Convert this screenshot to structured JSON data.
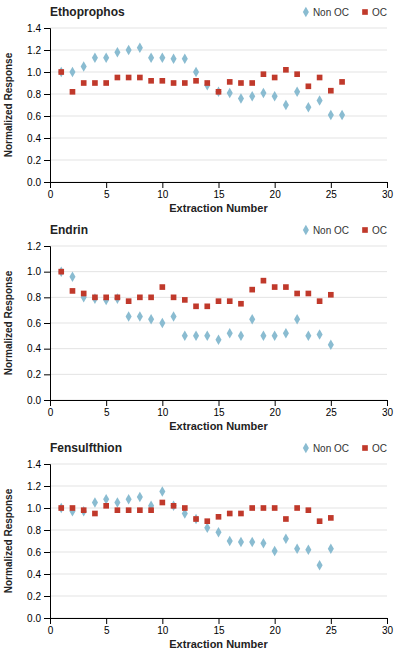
{
  "chart_data": [
    {
      "type": "scatter",
      "title": "Ethoprophos",
      "xlabel": "Extraction Number",
      "ylabel": "Normalized Response",
      "xlim": [
        0,
        30
      ],
      "xticks": [
        0,
        5,
        10,
        15,
        20,
        25,
        30
      ],
      "ylim": [
        0,
        1.4
      ],
      "yticks": [
        {
          "value": 0,
          "label": "0.0"
        },
        0.2,
        0.4,
        0.6,
        0.8,
        {
          "value": 1.0,
          "label": "1.0"
        },
        1.2,
        1.4
      ],
      "grid": "y",
      "legend": "upper right",
      "series": [
        {
          "name": "Non OC",
          "color": "#8abcd1",
          "marker": "diamond",
          "x": [
            1,
            2,
            3,
            4,
            5,
            6,
            7,
            8,
            9,
            10,
            11,
            12,
            13,
            14,
            15,
            16,
            17,
            18,
            19,
            20,
            21,
            22,
            23,
            24,
            25,
            26
          ],
          "values": [
            1.0,
            1.0,
            1.05,
            1.13,
            1.13,
            1.18,
            1.2,
            1.22,
            1.13,
            1.13,
            1.12,
            1.12,
            1.0,
            0.88,
            0.82,
            0.81,
            0.76,
            0.78,
            0.81,
            0.78,
            0.7,
            0.82,
            0.68,
            0.74,
            0.61,
            0.61
          ]
        },
        {
          "name": "OC",
          "color": "#c0392b",
          "marker": "square",
          "x": [
            1,
            2,
            3,
            4,
            5,
            6,
            7,
            8,
            9,
            10,
            11,
            12,
            13,
            14,
            15,
            16,
            17,
            18,
            19,
            20,
            21,
            22,
            23,
            24,
            25,
            26
          ],
          "values": [
            1.0,
            0.82,
            0.9,
            0.9,
            0.9,
            0.95,
            0.95,
            0.95,
            0.92,
            0.92,
            0.9,
            0.9,
            0.92,
            0.9,
            0.82,
            0.91,
            0.9,
            0.9,
            0.98,
            0.95,
            1.02,
            0.98,
            0.87,
            0.95,
            0.83,
            0.91
          ]
        }
      ]
    },
    {
      "type": "scatter",
      "title": "Endrin",
      "xlabel": "Extraction Number",
      "ylabel": "Normalized Response",
      "xlim": [
        0,
        30
      ],
      "xticks": [
        0,
        5,
        10,
        15,
        20,
        25,
        30
      ],
      "ylim": [
        0,
        1.2
      ],
      "yticks": [
        {
          "value": 0,
          "label": "0.0"
        },
        0.2,
        0.4,
        0.6,
        0.8,
        {
          "value": 1.0,
          "label": "1.0"
        },
        1.2
      ],
      "grid": "y",
      "legend": "upper right",
      "series": [
        {
          "name": "Non OC",
          "color": "#8abcd1",
          "marker": "diamond",
          "x": [
            1,
            2,
            3,
            4,
            5,
            6,
            7,
            8,
            9,
            10,
            11,
            12,
            13,
            14,
            15,
            16,
            17,
            18,
            19,
            20,
            21,
            22,
            23,
            24,
            25
          ],
          "values": [
            1.0,
            0.96,
            0.8,
            0.79,
            0.78,
            0.79,
            0.65,
            0.65,
            0.63,
            0.6,
            0.65,
            0.5,
            0.5,
            0.5,
            0.47,
            0.52,
            0.5,
            0.63,
            0.5,
            0.5,
            0.52,
            0.63,
            0.5,
            0.51,
            0.43
          ]
        },
        {
          "name": "OC",
          "color": "#c0392b",
          "marker": "square",
          "x": [
            1,
            2,
            3,
            4,
            5,
            6,
            7,
            8,
            9,
            10,
            11,
            12,
            13,
            14,
            15,
            16,
            17,
            18,
            19,
            20,
            21,
            22,
            23,
            24,
            25
          ],
          "values": [
            1.0,
            0.85,
            0.83,
            0.8,
            0.8,
            0.8,
            0.77,
            0.8,
            0.8,
            0.88,
            0.8,
            0.78,
            0.73,
            0.73,
            0.77,
            0.77,
            0.75,
            0.86,
            0.93,
            0.88,
            0.88,
            0.83,
            0.83,
            0.77,
            0.82
          ]
        }
      ]
    },
    {
      "type": "scatter",
      "title": "Fensulfthion",
      "xlabel": "Extraction Number",
      "ylabel": "Normalized Response",
      "xlim": [
        0,
        30
      ],
      "xticks": [
        0,
        5,
        10,
        15,
        20,
        25,
        30
      ],
      "ylim": [
        0,
        1.4
      ],
      "yticks": [
        {
          "value": 0,
          "label": "0.0"
        },
        0.2,
        0.4,
        0.6,
        0.8,
        {
          "value": 1.0,
          "label": "1.0"
        },
        1.2,
        1.4
      ],
      "grid": "y",
      "legend": "upper right",
      "series": [
        {
          "name": "Non OC",
          "color": "#8abcd1",
          "marker": "diamond",
          "x": [
            1,
            2,
            3,
            4,
            5,
            6,
            7,
            8,
            9,
            10,
            11,
            12,
            13,
            14,
            15,
            16,
            17,
            18,
            19,
            20,
            21,
            22,
            23,
            24,
            25
          ],
          "values": [
            1.0,
            0.97,
            0.97,
            1.05,
            1.08,
            1.05,
            1.08,
            1.1,
            1.02,
            1.15,
            1.02,
            0.95,
            0.9,
            0.82,
            0.78,
            0.7,
            0.69,
            0.69,
            0.68,
            0.61,
            0.72,
            0.63,
            0.62,
            0.48,
            0.63
          ]
        },
        {
          "name": "OC",
          "color": "#c0392b",
          "marker": "square",
          "x": [
            1,
            2,
            3,
            4,
            5,
            6,
            7,
            8,
            9,
            10,
            11,
            12,
            13,
            14,
            15,
            16,
            17,
            18,
            19,
            20,
            21,
            22,
            23,
            24,
            25
          ],
          "values": [
            1.0,
            1.0,
            0.98,
            0.95,
            1.02,
            0.98,
            0.98,
            0.98,
            0.98,
            1.05,
            1.02,
            1.0,
            0.9,
            0.88,
            0.92,
            0.95,
            0.95,
            1.0,
            1.0,
            1.0,
            0.9,
            1.0,
            0.98,
            0.88,
            0.91
          ]
        }
      ]
    }
  ]
}
